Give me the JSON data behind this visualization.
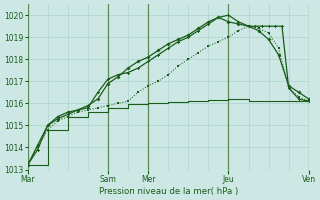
{
  "background_color": "#cde8e4",
  "grid_color": "#b0d8d0",
  "line_color": "#1a5c1a",
  "vline_color": "#5a8a5a",
  "title": "Pression niveau de la mer( hPa )",
  "ylim": [
    1013,
    1020.5
  ],
  "yticks": [
    1013,
    1014,
    1015,
    1016,
    1017,
    1018,
    1019,
    1020
  ],
  "day_labels": [
    "Mar",
    "Sam",
    "Mer",
    "Jeu",
    "Ven"
  ],
  "total_hours": 168,
  "day_hours": [
    0,
    48,
    72,
    120,
    168
  ],
  "line1_x": [
    0,
    6,
    12,
    18,
    24,
    30,
    36,
    42,
    48,
    54,
    60,
    66,
    72,
    78,
    84,
    90,
    96,
    102,
    108,
    114,
    120,
    126,
    132,
    138,
    144,
    150,
    156,
    162,
    168
  ],
  "line1_y": [
    1013.2,
    1014.0,
    1014.8,
    1015.2,
    1015.4,
    1015.6,
    1015.7,
    1015.8,
    1015.9,
    1016.0,
    1016.1,
    1016.5,
    1016.8,
    1017.0,
    1017.3,
    1017.7,
    1018.0,
    1018.3,
    1018.6,
    1018.8,
    1019.0,
    1019.3,
    1019.5,
    1019.4,
    1019.2,
    1018.5,
    1016.7,
    1016.3,
    1016.1
  ],
  "line2_x": [
    0,
    6,
    12,
    18,
    24,
    30,
    36,
    42,
    48,
    54,
    60,
    66,
    72,
    78,
    84,
    90,
    96,
    102,
    108,
    114,
    120,
    126,
    132,
    138,
    144,
    150,
    156,
    162,
    168
  ],
  "line2_y": [
    1013.2,
    1014.1,
    1015.0,
    1015.4,
    1015.6,
    1015.7,
    1015.9,
    1016.2,
    1016.9,
    1017.2,
    1017.6,
    1017.9,
    1018.1,
    1018.4,
    1018.7,
    1018.9,
    1019.1,
    1019.4,
    1019.7,
    1019.9,
    1019.7,
    1019.6,
    1019.5,
    1019.3,
    1018.9,
    1018.2,
    1016.8,
    1016.5,
    1016.2
  ],
  "line3_x": [
    0,
    6,
    12,
    18,
    24,
    30,
    36,
    42,
    48,
    54,
    60,
    66,
    72,
    78,
    84,
    90,
    96,
    102,
    108,
    114,
    120,
    126,
    132,
    136,
    140,
    144,
    148,
    152,
    156,
    162,
    168
  ],
  "line3_y": [
    1013.2,
    1013.9,
    1015.0,
    1015.3,
    1015.5,
    1015.7,
    1015.8,
    1016.5,
    1017.1,
    1017.3,
    1017.4,
    1017.6,
    1017.9,
    1018.2,
    1018.5,
    1018.8,
    1019.0,
    1019.3,
    1019.6,
    1019.9,
    1020.0,
    1019.7,
    1019.5,
    1019.5,
    1019.5,
    1019.5,
    1019.5,
    1019.5,
    1016.7,
    1016.2,
    1016.1
  ],
  "line4_x": [
    0,
    12,
    24,
    36,
    48,
    60,
    72,
    84,
    96,
    108,
    120,
    132,
    144,
    156,
    168
  ],
  "line4_y": [
    1013.2,
    1014.8,
    1015.4,
    1015.6,
    1015.8,
    1015.95,
    1016.0,
    1016.05,
    1016.1,
    1016.15,
    1016.2,
    1016.1,
    1016.1,
    1016.1,
    1016.1
  ]
}
